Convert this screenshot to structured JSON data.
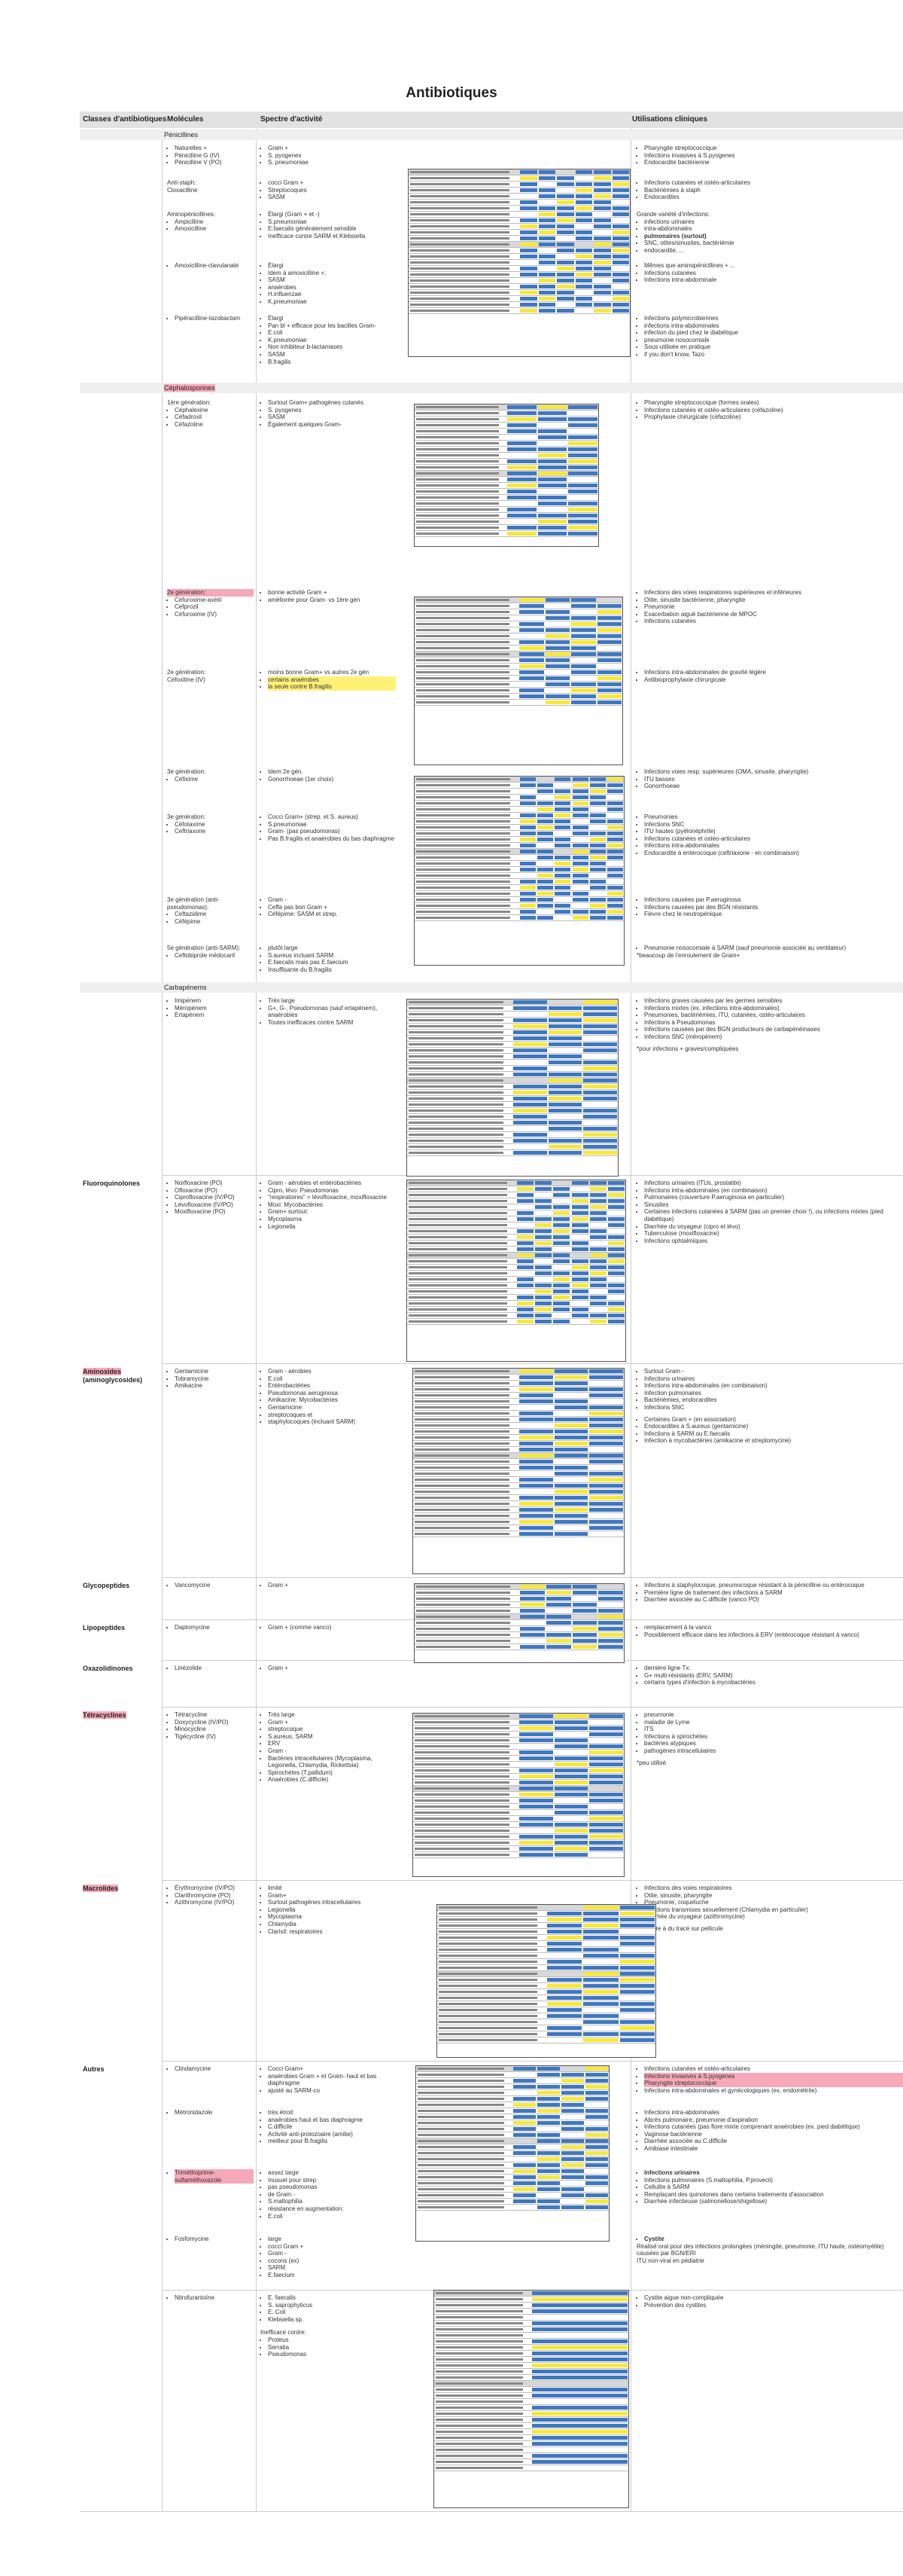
{
  "title": "Antibiotiques",
  "header": {
    "classes": "Classes d'antibiotiques",
    "molecules": "Molécules",
    "spectre": "Spectre d'activité",
    "utilisations": "Utilisations cliniques"
  },
  "colors": {
    "header_bg": "#e2e2e2",
    "section_bg": "#efefef",
    "blue_cell": "#3f77c0",
    "yellow_cell": "#f6e83a",
    "highlight": "#f7a8b8"
  },
  "beta": {
    "class": "Bêta-lactamines",
    "penicillines": "Pénicillines",
    "r1_mol": [
      "Naturelles =",
      "Pénicilline G (IV)",
      "Pénicilline V (PO)"
    ],
    "r1_spec": [
      "Gram +",
      "S. pyogenes",
      "S. pneumoniae"
    ],
    "r1_use": [
      "Pharyngite streptococcique",
      "Infections invasives à S.pyogenes",
      "Endocardite bactérienne"
    ],
    "r2_mol": [
      "Anti-staph:",
      "Cloxacilline"
    ],
    "r2_spec": [
      "cocci Gram +",
      "Streptocoques",
      "SASM"
    ],
    "r2_use": [
      "Infections cutanées et ostéo-articulaires",
      "Bactériémies à staph",
      "Endocardites"
    ],
    "r3_mol": [
      "Aminopénicillines:",
      "Ampicilline",
      "Amoxicilline"
    ],
    "r3_spec": [
      "Élargi (Gram + et -)",
      "S.pneumoniae",
      "E.faecalis généralement sensible",
      "Inefficace contre SARM et Klebsiella"
    ],
    "r3_use": [
      "Grande variété d'infections:",
      "infections urinaires",
      "intra-abdominales",
      "pulmonaires (surtout)",
      "SNC, otites/sinusites, bactériémie",
      "endocardite, ..."
    ],
    "r4_mol": [
      "Amoxicilline-clavulanate"
    ],
    "r4_spec": [
      "Élargi",
      "Idem à amoxicilline +:",
      "SASM",
      "anaérobes",
      "H.influenzae",
      "K.pneumoniae"
    ],
    "r4_use": [
      "Mêmes que aminopénicillines + ...",
      "Infections cutanées",
      "Infections intra-abdominale"
    ],
    "r5_mol": [
      "Pipéracilline-tazobactam"
    ],
    "r5_spec": [
      "Élargi",
      "Pan bl + efficace pour les bacilles Gram-",
      "E.coli",
      "K.pneumoniae",
      "Non inhibiteur b-lactamases",
      "SASM",
      "B.fragilis"
    ],
    "r5_use": [
      "Infections polymicrobiennes",
      "infections intra-abdominales",
      "infection du pied chez le diabétique",
      "pneumonie nosocomiale",
      "Sous-utilisée en pratique",
      "if you don't know, Tazo"
    ],
    "cephalo": "Céphalosporines",
    "c1_mol": [
      "1ère génération:",
      "Céphalexine",
      "Céfadroxil",
      "Céfazoline"
    ],
    "c1_spec": [
      "Surtout Gram+ pathogènes cutanés",
      "S. pyogenes",
      "SASM",
      "Également quelques Gram-"
    ],
    "c1_use": [
      "Pharyngite streptococcique (formes orales)",
      "Infections cutanées et ostéo-articulaires (céfazoline)",
      "Prophylaxie chirurgicale (céfazoline)"
    ],
    "c2_mol": [
      "2e génération:",
      "Céfuroxime-axétil",
      "Cefprozil",
      "Céfuroxime (IV)"
    ],
    "c2_spec": [
      "bonne activité Gram +",
      "améliorée pour Gram- vs 1ère gén"
    ],
    "c2_use": [
      "Infections des voies respiratoires supérieures et inférieures",
      "Otite, sinusite bactérienne, pharyngite",
      "Pneumonie",
      "Exacerbation aiguë bactérienne de MPOC",
      "Infections cutanées"
    ],
    "c2b_mol": [
      "2e génération:",
      "Céfoxitine (IV)"
    ],
    "c2b_spec": [
      "moins bonne Gram+ vs autres 2e gén",
      "certains anaérobes",
      "la seule contre B.fragilis"
    ],
    "c2b_use": [
      "Infections intra-abdominales de gravité légère",
      "Antibioprophylaxie chirurgicale"
    ],
    "c3_mol": [
      "3e génération:",
      "Céfixime"
    ],
    "c3_spec": [
      "Idem 2e gén.",
      "Gonorrhoeae (1er choix)"
    ],
    "c3_use": [
      "Infections voies resp. supérieures (OMA, sinusite, pharyngite)",
      "ITU basses",
      "Gonorrhoeae"
    ],
    "c3b_mol": [
      "3e génération:",
      "Céfotaxime",
      "Ceftriaxone"
    ],
    "c3b_spec": [
      "Cocci Gram+ (strep. et S. aureus)",
      "S.pneumoniae",
      "Gram- (pas pseudomonas)",
      "Pas B.fragilis et anaérobies du bas diaphragme"
    ],
    "c3b_use": [
      "Pneumonies",
      "Infections SNC",
      "ITU hautes (pyélonéphrite)",
      "Infections cutanées et ostéo-articulaires",
      "Infections intra-abdominales",
      "Endocardite à entérocoque (ceftriaxone - en combinaison)"
    ],
    "c3c_mol": [
      "3e génération (anti-pseudomonas):",
      "Ceftazidime",
      "Céfépime"
    ],
    "c3c_spec": [
      "Gram -",
      "Ceffa pas bon Gram +",
      "Céfépime: SASM et strep."
    ],
    "c3c_use": [
      "Infections causées par P.aeruginosa",
      "Infections causées par des BGN résistants",
      "Fièvre chez le neutropénique"
    ],
    "c5_mol": [
      "5e génération (anti-SARM):",
      "Ceftobiprole médocaril"
    ],
    "c5_spec": [
      "plutôt large",
      "S.aureus incluant SARM",
      "E.faecalis mais pas E.faecium",
      "Insuffisante du B.fragilis"
    ],
    "c5_use": [
      "Pneumonie nosocomiale à SARM (sauf pneumonie associée au ventilateur)",
      "*beaucoup de l'enroulement de Gram+"
    ],
    "carba": "Carbapénems",
    "cb_mol": [
      "Imipénem",
      "Méropénem",
      "Ertapénem"
    ],
    "cb_spec": [
      "Très large",
      "G+, G-, Pseudomonas (sauf ertapénem), anaérobies",
      "Toutes inefficaces contre SARM"
    ],
    "cb_use": [
      "Infections graves causées par les germes sensibles",
      "Infections mixtes (ex. infections intra-abdominales)",
      "Pneumonies, bactériémies, ITU, cutanées, ostéo-articulaires",
      "Infections à Pseudomonas",
      "Infections causées par des BGN producteurs de carbapénémases",
      "Infections SNC (méropénem)",
      "*pour infections + graves/compliquées"
    ]
  },
  "fluoro": {
    "class": "Fluoroquinolones",
    "mol": [
      "Norfloxacine (PO)",
      "Ofloxacine (PO)",
      "Ciprofloxacine (IV/PO)",
      "Lévofloxacine (IV/PO)",
      "Moxifloxacine (PO)"
    ],
    "spec": [
      "Gram - aérobies et entérobactéries",
      "Cipro, lévo: Pseudomonas",
      "\"respiratoires\" = lévofloxacine, moxifloxacine",
      "Moxi: Mycobactéries",
      "Gram+ surtout:",
      "Mycoplasma",
      "Legionella"
    ],
    "use": [
      "Infections urinaires (ITUs, prostatite)",
      "Infections intra-abdominales (en combinaison)",
      "Pulmonaires (couverture P.aeruginosa en particulier)",
      "Sinusites",
      "Certaines infections cutanées à SARM (pas un premier choix !), ou infections mixtes (pied diabétique)",
      "Diarrhée du voyageur (cipro et lévo)",
      "Tuberculose (moxifloxacine)",
      "Infections ophtalmiques"
    ]
  },
  "amino": {
    "class": "Aminosides",
    "class2": "(aminoglycosides)",
    "mol": [
      "Gentamicine",
      "Tobramycine",
      "Amikacine"
    ],
    "spec": [
      "Gram - aérobies",
      "E.coli",
      "Entérobactéries",
      "Pseudomonas aeruginosa",
      "Amikacine: Mycobactéries",
      "Gentamicine:",
      "streptocoques et",
      "staphylocoques (incluant SARM)"
    ],
    "use": [
      "Surtout Gram -",
      "Infections urinaires",
      "Infections intra-abdominales (en combinaison)",
      "Infection pulmonaires",
      "Bactériémies, endocardites",
      "Infections SNC",
      "Certaines Gram + (en association)",
      "Endocardites à S.aureus (gentamicine)",
      "Infections à SARM ou E.faecalis",
      "Infection à mycobactéries (amikacine et streptomycine)"
    ]
  },
  "glyco": {
    "class": "Glycopeptides",
    "mol": [
      "Vancomycine"
    ],
    "spec": [
      "Gram +"
    ],
    "use": [
      "Infections à staphylocoque, pneumocoque résistant à la pénicilline ou entérocoque",
      "Première ligne de traitement des infections à SARM",
      "Diarrhée associée au C.difficile (vanco PO)"
    ]
  },
  "lipo": {
    "class": "Lipopeptides",
    "mol": [
      "Daptomycine"
    ],
    "spec": [
      "Gram + (comme vanco)"
    ],
    "use": [
      "remplacement à la vanco",
      "Possiblement efficace dans les infections à ERV (entérocoque résistant à vanco)"
    ]
  },
  "oxa": {
    "class": "Oxazolidinones",
    "mol": [
      "Linézolide"
    ],
    "spec": [
      "Gram +"
    ],
    "use": [
      "dernière ligne Tx:",
      "G+ multi-résistants (ERV, SARM)",
      "certains types d'infection à mycobactéries"
    ]
  },
  "tetra": {
    "class": "Tétracyclines",
    "mol": [
      "Tétracycline",
      "Doxycycline (IV/PO)",
      "Minocycline",
      "Tigécycline (IV)"
    ],
    "spec": [
      "Très large",
      "Gram +",
      "streptocoque",
      "S.aureus, SARM",
      "ERV",
      "Gram -",
      "Bactéries intracellulaires (Mycoplasma, Legionella, Chlamydia, Rickettsia)",
      "Spirochètes (T.pallidum)",
      "Anaérobies (C.difficile)"
    ],
    "use": [
      "pneumonie",
      "maladie de Lyme",
      "ITS",
      "Infections à spirochètes",
      "bactéries atypiques",
      "pathogènes intracellulaires",
      "*peu utilisé"
    ]
  },
  "macro": {
    "class": "Macrolides",
    "mol": [
      "Érythromycine (IV/PO)",
      "Clarithromycine (PO)",
      "Azithromycine (IV/PO)"
    ],
    "spec": [
      "limité",
      "Gram+",
      "Surtout pathogènes intracellulaires",
      "Legionella",
      "Mycoplasma",
      "Chlamydia",
      "Clarisil: respiratoires"
    ],
    "use": [
      "Infections des voies respiratoires",
      "Otite, sinusite, pharyngite",
      "Pneumonie, coqueluche",
      "Infections transmises sexuellement (Chlamydia en particulier)",
      "Diarrhée du voyageur (azithromycine)",
      "*similaire à du tracé sur pellicule"
    ]
  },
  "autres": {
    "class": "Autres",
    "a1_mol": [
      "Clindamycine"
    ],
    "a1_spec": [
      "Cocci Gram+",
      "anaérobies Gram + et Gram- haut et bas diaphragme",
      "ajusté au SARM-co"
    ],
    "a1_use": [
      "Infections cutanées et ostéo-articulaires",
      "Infections invasives à S.pyogenes",
      "Pharyngite streptococcique",
      "Infections intra-abdominales et gynécologiques (ex. endométrite)"
    ],
    "a2_mol": [
      "Métronidazole"
    ],
    "a2_spec": [
      "très étroit",
      "anaérobies haut et bas diaphragme",
      "C.difficile",
      "Activité anti-protozoaire (amibe)",
      "meilleur pour B.fragilis"
    ],
    "a2_use": [
      "Infections intra-abdominales",
      "Abcès pulmonaire, pneumonie d'aspiration",
      "Infections cutanées (pas flore mixte comprenant anaérobies (ex. pied diabétique)",
      "Vaginose bactérienne",
      "Diarrhée associée au C.difficile",
      "Amibiase intestinale"
    ],
    "a3_mol": [
      "Triméthoprime-sulfaméthoxazole"
    ],
    "a3_spec": [
      "assez large",
      "Inusuel pour strep",
      "pas pseudomonas",
      "de Gram -",
      "S.maltophilia",
      "résistance en augmentation:",
      "E.coli"
    ],
    "a3_use": [
      "Infections urinaires",
      "Infections pulmonaires (S.maltophilia, P.jirovecii)",
      "Cellulite à SARM",
      "Remplaçant des quinolones dans certains traitements d'association",
      "Diarrhée infectieuse (salmonellose/shigellose)"
    ],
    "a4_mol": [
      "Fosfomycine"
    ],
    "a4_spec": [
      "large",
      "cocci Gram +",
      "Gram -",
      "cocons (ex)",
      "SARM",
      "E.faecium"
    ],
    "a4_use": [
      "Cystite",
      "Réalisé oral pour des infections prolongées (méningite, pneumonie, ITU haute, ostéomyélite) causées par BGN/ERI",
      "ITU non-viral en pédiatrie"
    ],
    "a5_mol": [
      "Nitrofurantoïne"
    ],
    "a5_spec": [
      "E. faecalis",
      "S. saprophyticus",
      "E. Coli",
      "Klebsiella sp.",
      "Inefficace contre:",
      "Proteus",
      "Serratia",
      "Pseudomonas"
    ],
    "a5_use": [
      "Cystite aigue non-compliquée",
      "Prévention des cystites"
    ]
  }
}
